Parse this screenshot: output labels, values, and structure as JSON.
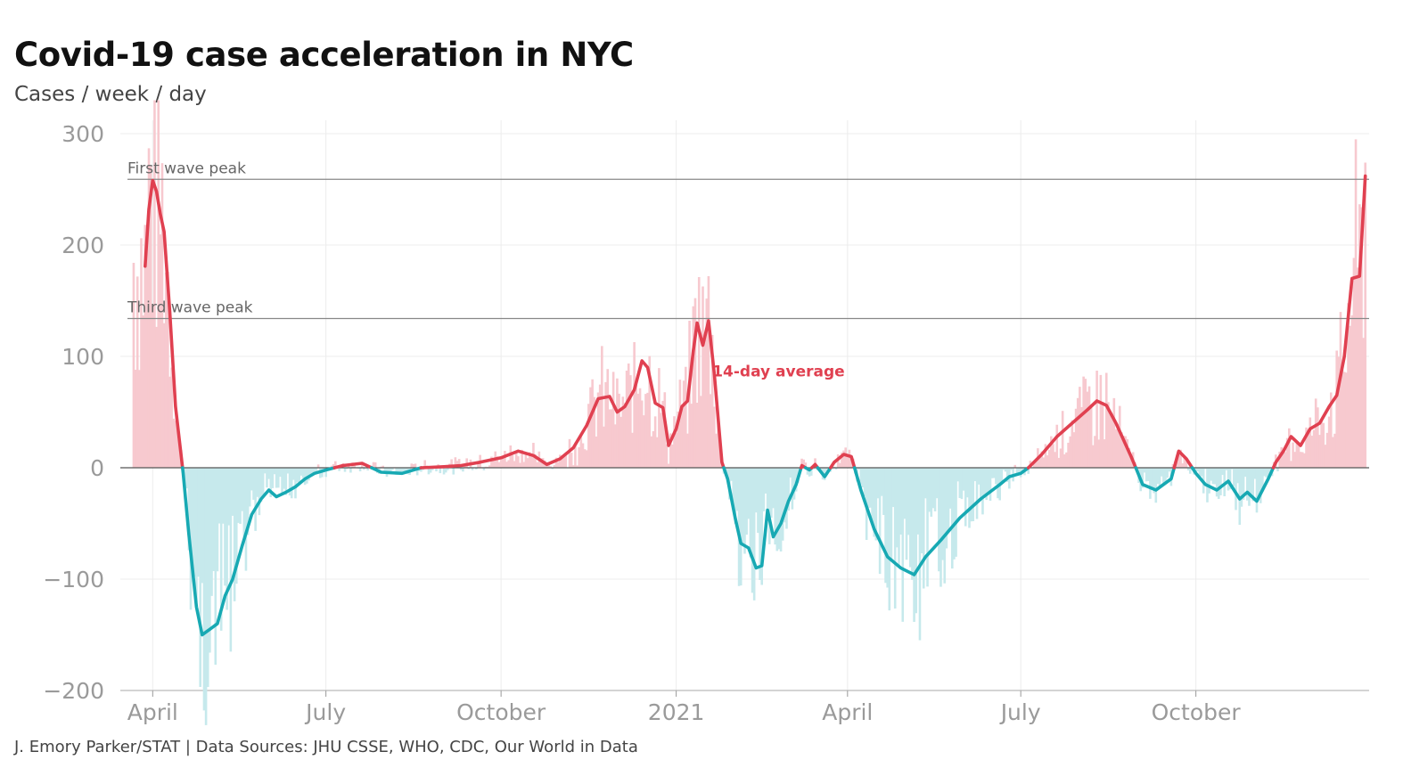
{
  "title": "Covid-19 case acceleration in NYC",
  "subtitle": "Cases / week / day",
  "source": "J. Emory Parker/STAT | Data Sources: JHU CSSE, WHO, CDC, Our World in Data",
  "colors": {
    "positive_line": "#e04050",
    "negative_line": "#17a9b3",
    "positive_bar": "#f7c9cf",
    "negative_bar": "#c6e9ec",
    "zero_line": "#555555",
    "ref_line": "#888888",
    "grid": "#ececec"
  },
  "chart_data": {
    "type": "area",
    "title": "Covid-19 case acceleration in NYC",
    "ylabel": "Cases / week / day",
    "ylim": [
      -200,
      300
    ],
    "yticks": [
      {
        "value": 300,
        "label": "300"
      },
      {
        "value": 200,
        "label": "200"
      },
      {
        "value": 100,
        "label": "100"
      },
      {
        "value": 0,
        "label": "0"
      },
      {
        "value": -100,
        "label": "−100"
      },
      {
        "value": -200,
        "label": "−200"
      }
    ],
    "xlim": [
      "2020-03-15",
      "2021-12-31"
    ],
    "xticks": [
      {
        "date": "2020-04-01",
        "label": "April"
      },
      {
        "date": "2020-07-01",
        "label": "July"
      },
      {
        "date": "2020-10-01",
        "label": "October"
      },
      {
        "date": "2021-01-01",
        "label": "2021"
      },
      {
        "date": "2021-04-01",
        "label": "April"
      },
      {
        "date": "2021-07-01",
        "label": "July"
      },
      {
        "date": "2021-10-01",
        "label": "October"
      }
    ],
    "grid": true,
    "reference_lines": [
      {
        "label": "First wave peak",
        "value": 259
      },
      {
        "label": "Third wave peak",
        "value": 134
      }
    ],
    "annotations": [
      {
        "label": "14-day average",
        "date": "2021-01-20",
        "value": 82
      }
    ],
    "series": [
      {
        "name": "14-day average",
        "points": [
          [
            "2020-03-28",
            181
          ],
          [
            "2020-03-30",
            232
          ],
          [
            "2020-04-01",
            258
          ],
          [
            "2020-04-03",
            248
          ],
          [
            "2020-04-05",
            228
          ],
          [
            "2020-04-07",
            212
          ],
          [
            "2020-04-10",
            140
          ],
          [
            "2020-04-13",
            55
          ],
          [
            "2020-04-17",
            -5
          ],
          [
            "2020-04-20",
            -60
          ],
          [
            "2020-04-24",
            -125
          ],
          [
            "2020-04-27",
            -150
          ],
          [
            "2020-05-01",
            -145
          ],
          [
            "2020-05-05",
            -140
          ],
          [
            "2020-05-09",
            -115
          ],
          [
            "2020-05-13",
            -100
          ],
          [
            "2020-05-18",
            -70
          ],
          [
            "2020-05-23",
            -42
          ],
          [
            "2020-05-28",
            -28
          ],
          [
            "2020-06-01",
            -20
          ],
          [
            "2020-06-05",
            -26
          ],
          [
            "2020-06-10",
            -22
          ],
          [
            "2020-06-15",
            -17
          ],
          [
            "2020-06-20",
            -10
          ],
          [
            "2020-06-25",
            -5
          ],
          [
            "2020-07-01",
            -2
          ],
          [
            "2020-07-10",
            2
          ],
          [
            "2020-07-20",
            4
          ],
          [
            "2020-07-30",
            -4
          ],
          [
            "2020-08-10",
            -5
          ],
          [
            "2020-08-20",
            0
          ],
          [
            "2020-09-01",
            1
          ],
          [
            "2020-09-10",
            2
          ],
          [
            "2020-09-20",
            5
          ],
          [
            "2020-10-01",
            9
          ],
          [
            "2020-10-10",
            15
          ],
          [
            "2020-10-18",
            11
          ],
          [
            "2020-10-25",
            3
          ],
          [
            "2020-11-01",
            8
          ],
          [
            "2020-11-08",
            18
          ],
          [
            "2020-11-15",
            38
          ],
          [
            "2020-11-21",
            62
          ],
          [
            "2020-11-27",
            64
          ],
          [
            "2020-12-01",
            50
          ],
          [
            "2020-12-05",
            55
          ],
          [
            "2020-12-10",
            70
          ],
          [
            "2020-12-14",
            96
          ],
          [
            "2020-12-17",
            90
          ],
          [
            "2020-12-21",
            58
          ],
          [
            "2020-12-25",
            54
          ],
          [
            "2020-12-28",
            20
          ],
          [
            "2021-01-01",
            35
          ],
          [
            "2021-01-04",
            55
          ],
          [
            "2021-01-07",
            60
          ],
          [
            "2021-01-10",
            105
          ],
          [
            "2021-01-12",
            130
          ],
          [
            "2021-01-15",
            110
          ],
          [
            "2021-01-18",
            132
          ],
          [
            "2021-01-21",
            85
          ],
          [
            "2021-01-25",
            5
          ],
          [
            "2021-01-28",
            -10
          ],
          [
            "2021-02-01",
            -45
          ],
          [
            "2021-02-04",
            -68
          ],
          [
            "2021-02-08",
            -72
          ],
          [
            "2021-02-12",
            -90
          ],
          [
            "2021-02-15",
            -88
          ],
          [
            "2021-02-18",
            -38
          ],
          [
            "2021-02-21",
            -62
          ],
          [
            "2021-02-25",
            -50
          ],
          [
            "2021-03-01",
            -30
          ],
          [
            "2021-03-05",
            -15
          ],
          [
            "2021-03-08",
            2
          ],
          [
            "2021-03-12",
            -2
          ],
          [
            "2021-03-15",
            3
          ],
          [
            "2021-03-20",
            -8
          ],
          [
            "2021-03-25",
            5
          ],
          [
            "2021-03-30",
            12
          ],
          [
            "2021-04-03",
            10
          ],
          [
            "2021-04-08",
            -20
          ],
          [
            "2021-04-15",
            -55
          ],
          [
            "2021-04-22",
            -80
          ],
          [
            "2021-04-29",
            -90
          ],
          [
            "2021-05-06",
            -96
          ],
          [
            "2021-05-12",
            -80
          ],
          [
            "2021-05-20",
            -65
          ],
          [
            "2021-05-30",
            -45
          ],
          [
            "2021-06-10",
            -28
          ],
          [
            "2021-06-20",
            -15
          ],
          [
            "2021-06-25",
            -8
          ],
          [
            "2021-07-01",
            -5
          ],
          [
            "2021-07-05",
            0
          ],
          [
            "2021-07-12",
            12
          ],
          [
            "2021-07-20",
            28
          ],
          [
            "2021-07-28",
            40
          ],
          [
            "2021-08-05",
            52
          ],
          [
            "2021-08-10",
            60
          ],
          [
            "2021-08-15",
            56
          ],
          [
            "2021-08-20",
            40
          ],
          [
            "2021-08-28",
            10
          ],
          [
            "2021-09-03",
            -15
          ],
          [
            "2021-09-10",
            -20
          ],
          [
            "2021-09-18",
            -10
          ],
          [
            "2021-09-22",
            15
          ],
          [
            "2021-09-26",
            8
          ],
          [
            "2021-10-01",
            -5
          ],
          [
            "2021-10-06",
            -15
          ],
          [
            "2021-10-12",
            -20
          ],
          [
            "2021-10-18",
            -12
          ],
          [
            "2021-10-24",
            -28
          ],
          [
            "2021-10-28",
            -22
          ],
          [
            "2021-11-02",
            -30
          ],
          [
            "2021-11-08",
            -10
          ],
          [
            "2021-11-12",
            5
          ],
          [
            "2021-11-16",
            15
          ],
          [
            "2021-11-20",
            28
          ],
          [
            "2021-11-25",
            20
          ],
          [
            "2021-11-30",
            35
          ],
          [
            "2021-12-05",
            40
          ],
          [
            "2021-12-10",
            55
          ],
          [
            "2021-12-14",
            65
          ],
          [
            "2021-12-18",
            100
          ],
          [
            "2021-12-22",
            170
          ],
          [
            "2021-12-26",
            172
          ],
          [
            "2021-12-29",
            262
          ]
        ]
      }
    ]
  }
}
